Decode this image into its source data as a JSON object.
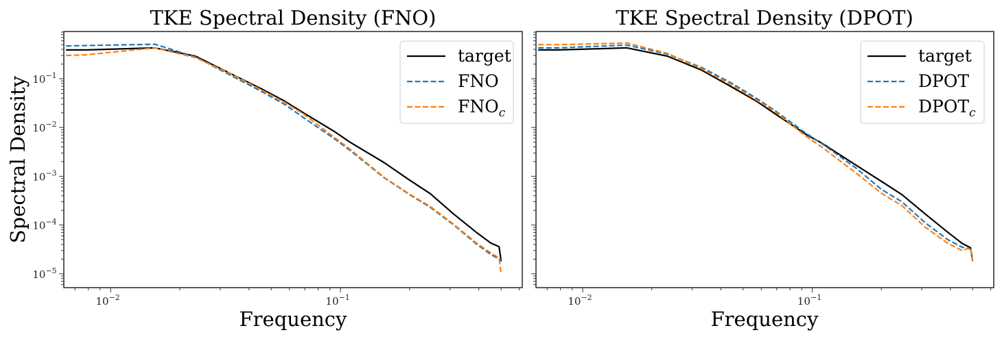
{
  "chart_data": [
    {
      "type": "line",
      "title": "TKE Spectral Density (FNO)",
      "xlabel": "Frequency",
      "ylabel": "Spectral Density",
      "xscale": "log",
      "yscale": "log",
      "xlim": [
        0.00626,
        0.618
      ],
      "ylim": [
        5.2e-06,
        0.93
      ],
      "xticks": [
        {
          "value": 0.01,
          "label": "10",
          "exp": "−2"
        },
        {
          "value": 0.1,
          "label": "10",
          "exp": "−1"
        }
      ],
      "yticks": [
        {
          "value": 0.1,
          "label": "10",
          "exp": "−1"
        },
        {
          "value": 0.01,
          "label": "10",
          "exp": "−2"
        },
        {
          "value": 0.001,
          "label": "10",
          "exp": "−3"
        },
        {
          "value": 0.0001,
          "label": "10",
          "exp": "−4"
        },
        {
          "value": 1e-05,
          "label": "10",
          "exp": "−5"
        }
      ],
      "grid": false,
      "legend_position": "top-right",
      "x": [
        0.0064,
        0.0078,
        0.0156,
        0.0234,
        0.033,
        0.045,
        0.057,
        0.069,
        0.094,
        0.11,
        0.155,
        0.2,
        0.246,
        0.31,
        0.39,
        0.45,
        0.49,
        0.5
      ],
      "series": [
        {
          "name": "target",
          "color": "#000000",
          "style": "solid",
          "values": [
            0.39,
            0.39,
            0.43,
            0.29,
            0.13,
            0.063,
            0.035,
            0.02,
            0.0083,
            0.005,
            0.0019,
            0.00083,
            0.00044,
            0.00017,
            7.1e-05,
            4.3e-05,
            3.6e-05,
            1.8e-05
          ]
        },
        {
          "name": "FNO",
          "color": "#1f77b4",
          "style": "dashed",
          "values": [
            0.47,
            0.48,
            0.51,
            0.28,
            0.12,
            0.056,
            0.03,
            0.016,
            0.0059,
            0.0034,
            0.00093,
            0.00042,
            0.00023,
            0.000102,
            4.1e-05,
            2.5e-05,
            2e-05,
            1.9e-05
          ]
        },
        {
          "name": "FNO",
          "sub": "c",
          "color": "#ff7f0e",
          "style": "dashed",
          "values": [
            0.3,
            0.31,
            0.43,
            0.27,
            0.13,
            0.06,
            0.033,
            0.019,
            0.0063,
            0.0036,
            0.00095,
            0.00043,
            0.00024,
            0.000105,
            4.3e-05,
            2.7e-05,
            2.1e-05,
            1e-05
          ]
        }
      ]
    },
    {
      "type": "line",
      "title": "TKE Spectral Density (DPOT)",
      "xlabel": "Frequency",
      "ylabel": "",
      "xscale": "log",
      "yscale": "log",
      "xlim": [
        0.00626,
        0.618
      ],
      "ylim": [
        5.2e-06,
        0.93
      ],
      "xticks": [
        {
          "value": 0.01,
          "label": "10",
          "exp": "−2"
        },
        {
          "value": 0.1,
          "label": "10",
          "exp": "−1"
        }
      ],
      "yticks": [],
      "grid": false,
      "legend_position": "top-right",
      "x": [
        0.0064,
        0.0078,
        0.0156,
        0.0234,
        0.033,
        0.045,
        0.057,
        0.069,
        0.094,
        0.11,
        0.155,
        0.2,
        0.246,
        0.31,
        0.39,
        0.45,
        0.49,
        0.5
      ],
      "series": [
        {
          "name": "target",
          "color": "#000000",
          "style": "solid",
          "values": [
            0.39,
            0.39,
            0.43,
            0.29,
            0.15,
            0.066,
            0.035,
            0.019,
            0.0072,
            0.0048,
            0.0017,
            0.00079,
            0.00042,
            0.00017,
            7.1e-05,
            4.2e-05,
            3.4e-05,
            1.8e-05
          ]
        },
        {
          "name": "DPOT",
          "color": "#1f77b4",
          "style": "dashed",
          "values": [
            0.43,
            0.43,
            0.49,
            0.32,
            0.17,
            0.079,
            0.04,
            0.022,
            0.0076,
            0.0047,
            0.00148,
            0.00054,
            0.0003,
            0.000112,
            5e-05,
            3.5e-05,
            3.2e-05,
            1.8e-05
          ]
        },
        {
          "name": "DPOT",
          "sub": "c",
          "color": "#ff7f0e",
          "style": "dashed",
          "values": [
            0.5,
            0.5,
            0.54,
            0.33,
            0.16,
            0.072,
            0.037,
            0.021,
            0.0066,
            0.004,
            0.00117,
            0.00045,
            0.00025,
            9.1e-05,
            4.2e-05,
            3e-05,
            3.4e-05,
            1.8e-05
          ]
        }
      ]
    }
  ]
}
